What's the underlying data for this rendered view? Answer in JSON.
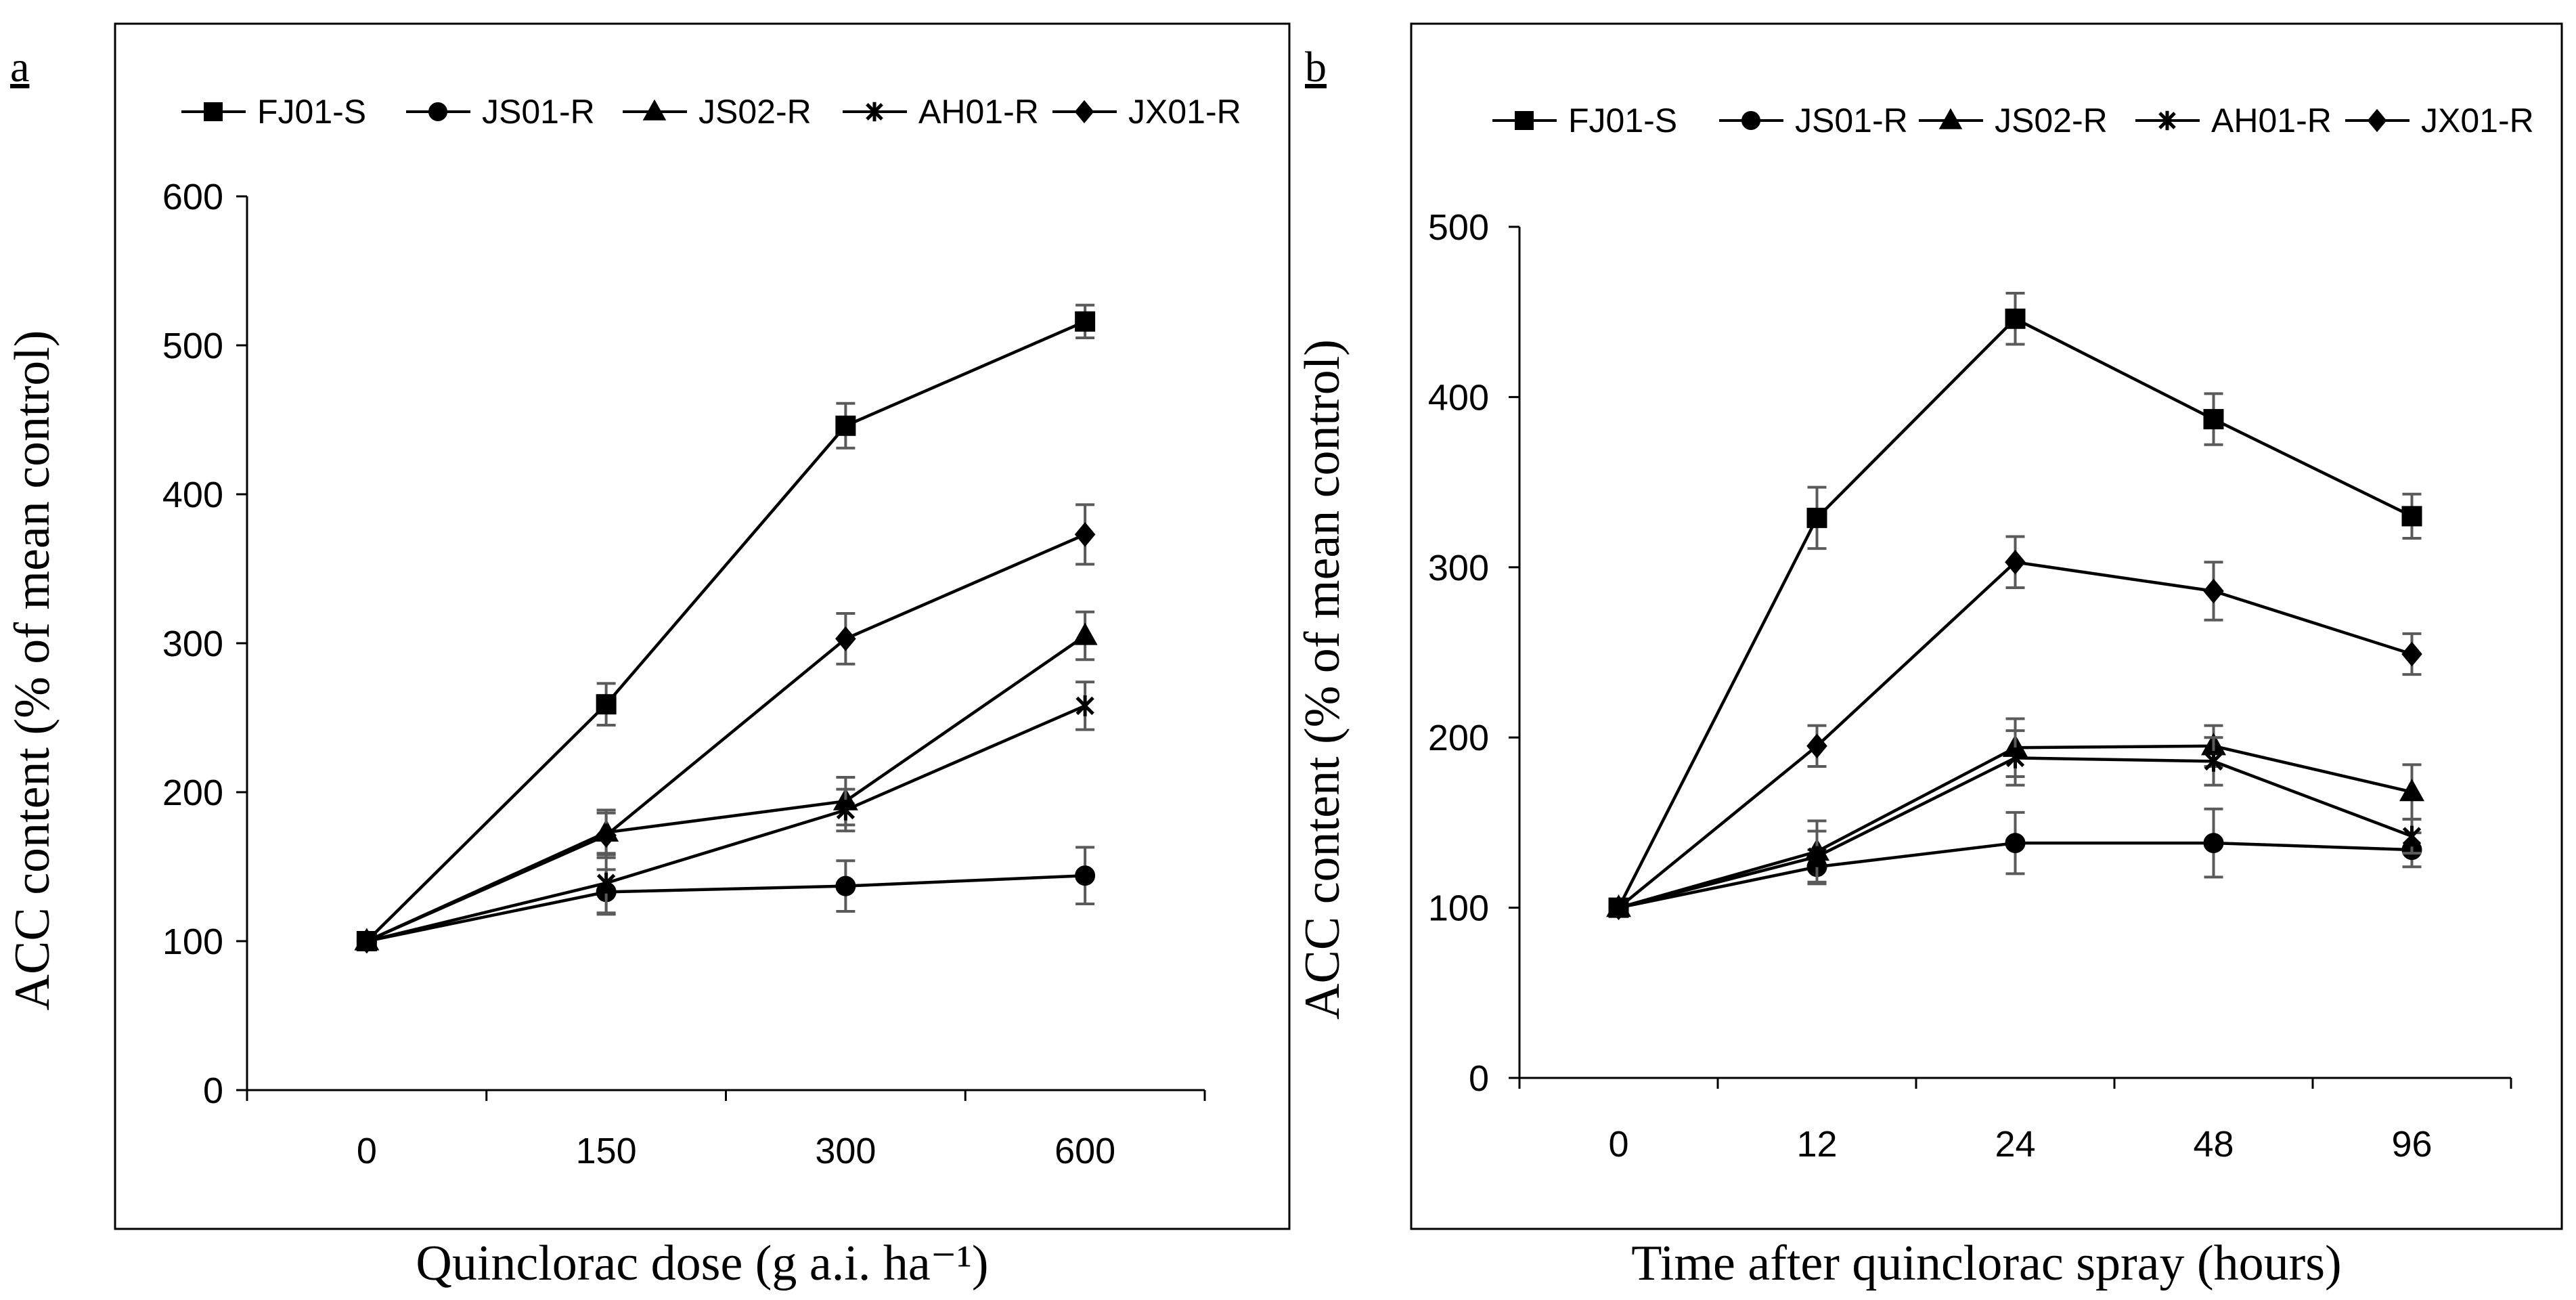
{
  "legend_labels": [
    "FJ01-S",
    "JS01-R",
    "JS02-R",
    "AH01-R",
    "JX01-R"
  ],
  "colors": {
    "ink": "#000000",
    "errorbar": "#5a5a5a",
    "background": "#ffffff"
  },
  "chart_data": [
    {
      "panel_label": "a",
      "type": "line",
      "categories": [
        "0",
        "150",
        "300",
        "600"
      ],
      "xlabel": "Quinclorac dose (g a.i. ha⁻¹)",
      "ylabel": "ACC content (% of mean control)",
      "ylim": [
        0,
        600
      ],
      "yticks": [
        0,
        100,
        200,
        300,
        400,
        500,
        600
      ],
      "legend_position": "top",
      "series": [
        {
          "name": "FJ01-S",
          "marker": "square",
          "values": [
            100,
            259,
            446,
            516
          ],
          "errors": [
            0,
            14,
            15,
            11
          ]
        },
        {
          "name": "JS01-R",
          "marker": "circle",
          "values": [
            100,
            133,
            137,
            144
          ],
          "errors": [
            0,
            15,
            17,
            19
          ]
        },
        {
          "name": "JS02-R",
          "marker": "triangle",
          "values": [
            100,
            173,
            194,
            305
          ],
          "errors": [
            0,
            15,
            16,
            16
          ]
        },
        {
          "name": "AH01-R",
          "marker": "star",
          "values": [
            100,
            139,
            188,
            258
          ],
          "errors": [
            0,
            20,
            14,
            16
          ]
        },
        {
          "name": "JX01-R",
          "marker": "diamond",
          "values": [
            100,
            171,
            303,
            373
          ],
          "errors": [
            0,
            15,
            17,
            20
          ]
        }
      ]
    },
    {
      "panel_label": "b",
      "type": "line",
      "categories": [
        "0",
        "12",
        "24",
        "48",
        "96"
      ],
      "xlabel": "Time after quinclorac spray (hours)",
      "ylabel": "ACC content (% of mean control)",
      "ylim": [
        0,
        500
      ],
      "yticks": [
        0,
        100,
        200,
        300,
        400,
        500
      ],
      "legend_position": "top",
      "series": [
        {
          "name": "FJ01-S",
          "marker": "square",
          "values": [
            100,
            329,
            446,
            387,
            330
          ],
          "errors": [
            0,
            18,
            15,
            15,
            13
          ]
        },
        {
          "name": "JS01-R",
          "marker": "circle",
          "values": [
            100,
            124,
            138,
            138,
            134
          ],
          "errors": [
            0,
            10,
            18,
            20,
            10
          ]
        },
        {
          "name": "JS02-R",
          "marker": "triangle",
          "values": [
            100,
            133,
            194,
            195,
            168
          ],
          "errors": [
            0,
            18,
            17,
            12,
            16
          ]
        },
        {
          "name": "AH01-R",
          "marker": "star",
          "values": [
            100,
            130,
            188,
            186,
            142
          ],
          "errors": [
            0,
            15,
            16,
            14,
            10
          ]
        },
        {
          "name": "JX01-R",
          "marker": "diamond",
          "values": [
            100,
            195,
            303,
            286,
            249
          ],
          "errors": [
            0,
            12,
            15,
            17,
            12
          ]
        }
      ]
    }
  ]
}
